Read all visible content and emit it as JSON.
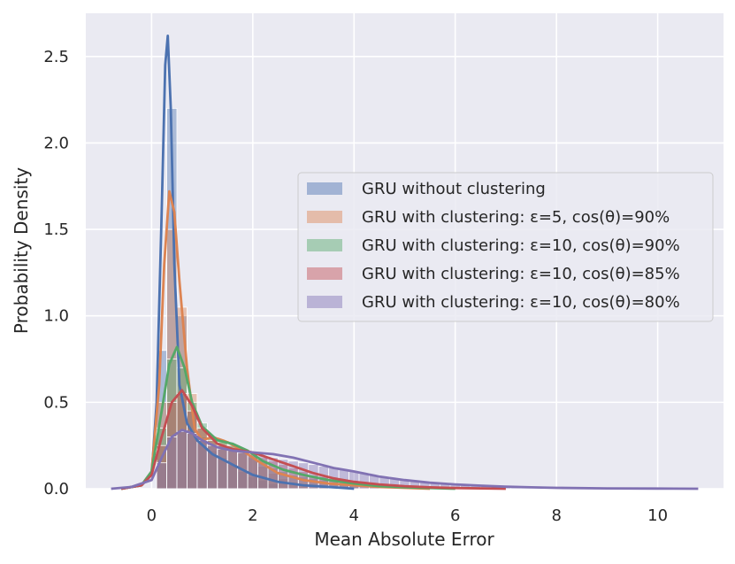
{
  "chart_data": {
    "type": "histogram-kde",
    "xlabel": "Mean Absolute Error",
    "ylabel": "Probability Density",
    "xlim": [
      -1.3,
      11.3
    ],
    "ylim": [
      0,
      2.75
    ],
    "xticks": [
      0,
      2,
      4,
      6,
      8,
      10
    ],
    "yticks": [
      0.0,
      0.5,
      1.0,
      1.5,
      2.0,
      2.5
    ],
    "grid": true,
    "legend_position": "center-right",
    "bin_width": 0.2,
    "series": [
      {
        "name": "GRU without clustering",
        "color": "#4c72b0",
        "bins": [
          [
            0.2,
            0.8
          ],
          [
            0.4,
            2.2
          ],
          [
            0.6,
            1.0
          ],
          [
            0.8,
            0.45
          ],
          [
            1.0,
            0.3
          ],
          [
            1.2,
            0.22
          ],
          [
            1.4,
            0.18
          ],
          [
            1.6,
            0.14
          ],
          [
            1.8,
            0.1
          ],
          [
            2.0,
            0.07
          ],
          [
            2.2,
            0.05
          ],
          [
            2.4,
            0.03
          ]
        ],
        "kde": [
          [
            -0.6,
            0
          ],
          [
            -0.2,
            0.02
          ],
          [
            0.0,
            0.08
          ],
          [
            0.1,
            0.5
          ],
          [
            0.2,
            1.6
          ],
          [
            0.27,
            2.45
          ],
          [
            0.32,
            2.62
          ],
          [
            0.38,
            2.2
          ],
          [
            0.45,
            1.3
          ],
          [
            0.55,
            0.6
          ],
          [
            0.7,
            0.38
          ],
          [
            0.9,
            0.28
          ],
          [
            1.2,
            0.2
          ],
          [
            1.6,
            0.14
          ],
          [
            2.0,
            0.08
          ],
          [
            2.5,
            0.04
          ],
          [
            3.0,
            0.02
          ],
          [
            3.5,
            0.01
          ],
          [
            4.0,
            0.0
          ]
        ]
      },
      {
        "name": "GRU with clustering: ε=5, cos(θ)=90%",
        "color": "#dd8452",
        "bins": [
          [
            0.2,
            0.5
          ],
          [
            0.4,
            1.5
          ],
          [
            0.6,
            1.05
          ],
          [
            0.8,
            0.55
          ],
          [
            1.0,
            0.35
          ],
          [
            1.2,
            0.3
          ],
          [
            1.4,
            0.28
          ],
          [
            1.6,
            0.25
          ],
          [
            1.8,
            0.22
          ],
          [
            2.0,
            0.18
          ],
          [
            2.2,
            0.13
          ],
          [
            2.4,
            0.09
          ],
          [
            2.6,
            0.06
          ],
          [
            2.8,
            0.04
          ],
          [
            3.0,
            0.03
          ]
        ],
        "kde": [
          [
            -0.6,
            0
          ],
          [
            -0.2,
            0.02
          ],
          [
            0.0,
            0.1
          ],
          [
            0.15,
            0.6
          ],
          [
            0.25,
            1.3
          ],
          [
            0.35,
            1.72
          ],
          [
            0.45,
            1.6
          ],
          [
            0.55,
            1.2
          ],
          [
            0.7,
            0.7
          ],
          [
            0.85,
            0.35
          ],
          [
            1.0,
            0.28
          ],
          [
            1.2,
            0.3
          ],
          [
            1.5,
            0.27
          ],
          [
            1.8,
            0.22
          ],
          [
            2.1,
            0.16
          ],
          [
            2.5,
            0.09
          ],
          [
            3.0,
            0.05
          ],
          [
            3.5,
            0.03
          ],
          [
            4.0,
            0.02
          ],
          [
            4.5,
            0.01
          ],
          [
            5.0,
            0.005
          ],
          [
            5.5,
            0.0
          ]
        ]
      },
      {
        "name": "GRU with clustering: ε=10, cos(θ)=90%",
        "color": "#55a868",
        "bins": [
          [
            0.2,
            0.35
          ],
          [
            0.4,
            0.75
          ],
          [
            0.6,
            0.7
          ],
          [
            0.8,
            0.5
          ],
          [
            1.0,
            0.38
          ],
          [
            1.2,
            0.3
          ],
          [
            1.4,
            0.27
          ],
          [
            1.6,
            0.25
          ],
          [
            1.8,
            0.22
          ],
          [
            2.0,
            0.19
          ],
          [
            2.2,
            0.15
          ],
          [
            2.4,
            0.12
          ],
          [
            2.6,
            0.1
          ],
          [
            2.8,
            0.08
          ],
          [
            3.0,
            0.07
          ],
          [
            3.2,
            0.06
          ],
          [
            3.4,
            0.05
          ],
          [
            3.6,
            0.04
          ],
          [
            3.8,
            0.03
          ],
          [
            4.0,
            0.02
          ]
        ],
        "kde": [
          [
            -0.6,
            0
          ],
          [
            -0.2,
            0.02
          ],
          [
            0.0,
            0.1
          ],
          [
            0.2,
            0.45
          ],
          [
            0.35,
            0.72
          ],
          [
            0.5,
            0.82
          ],
          [
            0.65,
            0.7
          ],
          [
            0.8,
            0.5
          ],
          [
            1.0,
            0.36
          ],
          [
            1.3,
            0.28
          ],
          [
            1.6,
            0.26
          ],
          [
            1.9,
            0.22
          ],
          [
            2.2,
            0.16
          ],
          [
            2.6,
            0.11
          ],
          [
            3.0,
            0.08
          ],
          [
            3.5,
            0.05
          ],
          [
            4.0,
            0.03
          ],
          [
            4.5,
            0.015
          ],
          [
            5.0,
            0.008
          ],
          [
            6.0,
            0.0
          ]
        ]
      },
      {
        "name": "GRU with clustering: ε=10, cos(θ)=85%",
        "color": "#c44e52",
        "bins": [
          [
            0.2,
            0.25
          ],
          [
            0.4,
            0.5
          ],
          [
            0.6,
            0.55
          ],
          [
            0.8,
            0.45
          ],
          [
            1.0,
            0.35
          ],
          [
            1.2,
            0.28
          ],
          [
            1.4,
            0.25
          ],
          [
            1.6,
            0.23
          ],
          [
            1.8,
            0.21
          ],
          [
            2.0,
            0.2
          ],
          [
            2.2,
            0.18
          ],
          [
            2.4,
            0.16
          ],
          [
            2.6,
            0.14
          ],
          [
            2.8,
            0.12
          ],
          [
            3.0,
            0.1
          ],
          [
            3.2,
            0.08
          ],
          [
            3.4,
            0.07
          ],
          [
            3.6,
            0.06
          ],
          [
            3.8,
            0.05
          ],
          [
            4.0,
            0.04
          ],
          [
            4.2,
            0.03
          ],
          [
            4.4,
            0.02
          ]
        ],
        "kde": [
          [
            -0.6,
            0
          ],
          [
            -0.2,
            0.02
          ],
          [
            0.0,
            0.08
          ],
          [
            0.2,
            0.3
          ],
          [
            0.4,
            0.5
          ],
          [
            0.6,
            0.57
          ],
          [
            0.8,
            0.48
          ],
          [
            1.0,
            0.35
          ],
          [
            1.3,
            0.26
          ],
          [
            1.6,
            0.23
          ],
          [
            2.0,
            0.21
          ],
          [
            2.4,
            0.17
          ],
          [
            2.8,
            0.13
          ],
          [
            3.2,
            0.09
          ],
          [
            3.6,
            0.06
          ],
          [
            4.0,
            0.04
          ],
          [
            4.5,
            0.025
          ],
          [
            5.0,
            0.015
          ],
          [
            5.5,
            0.008
          ],
          [
            6.0,
            0.004
          ],
          [
            7.0,
            0.0
          ]
        ]
      },
      {
        "name": "GRU with clustering: ε=10, cos(θ)=80%",
        "color": "#8172b3",
        "bins": [
          [
            0.2,
            0.15
          ],
          [
            0.4,
            0.3
          ],
          [
            0.6,
            0.33
          ],
          [
            0.8,
            0.32
          ],
          [
            1.0,
            0.28
          ],
          [
            1.2,
            0.25
          ],
          [
            1.4,
            0.23
          ],
          [
            1.6,
            0.22
          ],
          [
            1.8,
            0.21
          ],
          [
            2.0,
            0.2
          ],
          [
            2.2,
            0.19
          ],
          [
            2.4,
            0.18
          ],
          [
            2.6,
            0.17
          ],
          [
            2.8,
            0.16
          ],
          [
            3.0,
            0.15
          ],
          [
            3.2,
            0.14
          ],
          [
            3.4,
            0.13
          ],
          [
            3.6,
            0.12
          ],
          [
            3.8,
            0.11
          ],
          [
            4.0,
            0.1
          ],
          [
            4.2,
            0.09
          ],
          [
            4.4,
            0.08
          ],
          [
            4.6,
            0.07
          ],
          [
            4.8,
            0.06
          ],
          [
            5.0,
            0.05
          ],
          [
            5.2,
            0.045
          ],
          [
            5.4,
            0.04
          ],
          [
            5.6,
            0.035
          ],
          [
            5.8,
            0.03
          ],
          [
            6.0,
            0.025
          ],
          [
            6.2,
            0.02
          ],
          [
            6.4,
            0.018
          ],
          [
            6.6,
            0.015
          ],
          [
            6.8,
            0.012
          ],
          [
            7.0,
            0.01
          ],
          [
            7.2,
            0.008
          ],
          [
            7.4,
            0.006
          ]
        ],
        "kde": [
          [
            -0.8,
            0
          ],
          [
            -0.4,
            0.01
          ],
          [
            0.0,
            0.05
          ],
          [
            0.2,
            0.18
          ],
          [
            0.4,
            0.3
          ],
          [
            0.6,
            0.34
          ],
          [
            0.8,
            0.32
          ],
          [
            1.0,
            0.28
          ],
          [
            1.3,
            0.24
          ],
          [
            1.6,
            0.22
          ],
          [
            2.0,
            0.21
          ],
          [
            2.4,
            0.2
          ],
          [
            2.8,
            0.18
          ],
          [
            3.2,
            0.15
          ],
          [
            3.6,
            0.12
          ],
          [
            4.0,
            0.1
          ],
          [
            4.5,
            0.07
          ],
          [
            5.0,
            0.05
          ],
          [
            5.5,
            0.035
          ],
          [
            6.0,
            0.025
          ],
          [
            6.5,
            0.018
          ],
          [
            7.0,
            0.012
          ],
          [
            7.5,
            0.008
          ],
          [
            8.0,
            0.005
          ],
          [
            9.0,
            0.002
          ],
          [
            10.0,
            0.001
          ],
          [
            10.8,
            0.0
          ]
        ]
      }
    ]
  }
}
